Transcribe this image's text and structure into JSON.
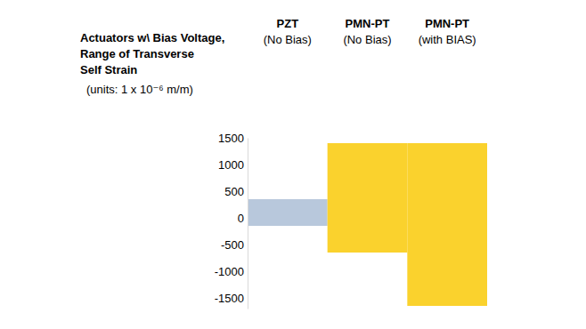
{
  "chart_data": {
    "type": "bar",
    "title": [
      "Actuators w\\ Bias Voltage,",
      "Range of Transverse",
      "Self Strain"
    ],
    "subtitle": "(units: 1 x 10⁻⁶ m/m)",
    "categories": [
      [
        "PZT",
        "(No Bias)"
      ],
      [
        "PMN-PT",
        "(No Bias)"
      ],
      [
        "PMN-PT",
        "(with  BIAS)"
      ]
    ],
    "values": [
      [
        -150,
        350
      ],
      [
        -650,
        1400
      ],
      [
        -1650,
        1400
      ]
    ],
    "colors": [
      "#b8c8dc",
      "#fad22d",
      "#fad22d"
    ],
    "ylim": [
      -1700,
      1500
    ],
    "yticks": [
      -1500,
      -1000,
      -500,
      0,
      500,
      1000,
      1500
    ],
    "grid": false
  }
}
